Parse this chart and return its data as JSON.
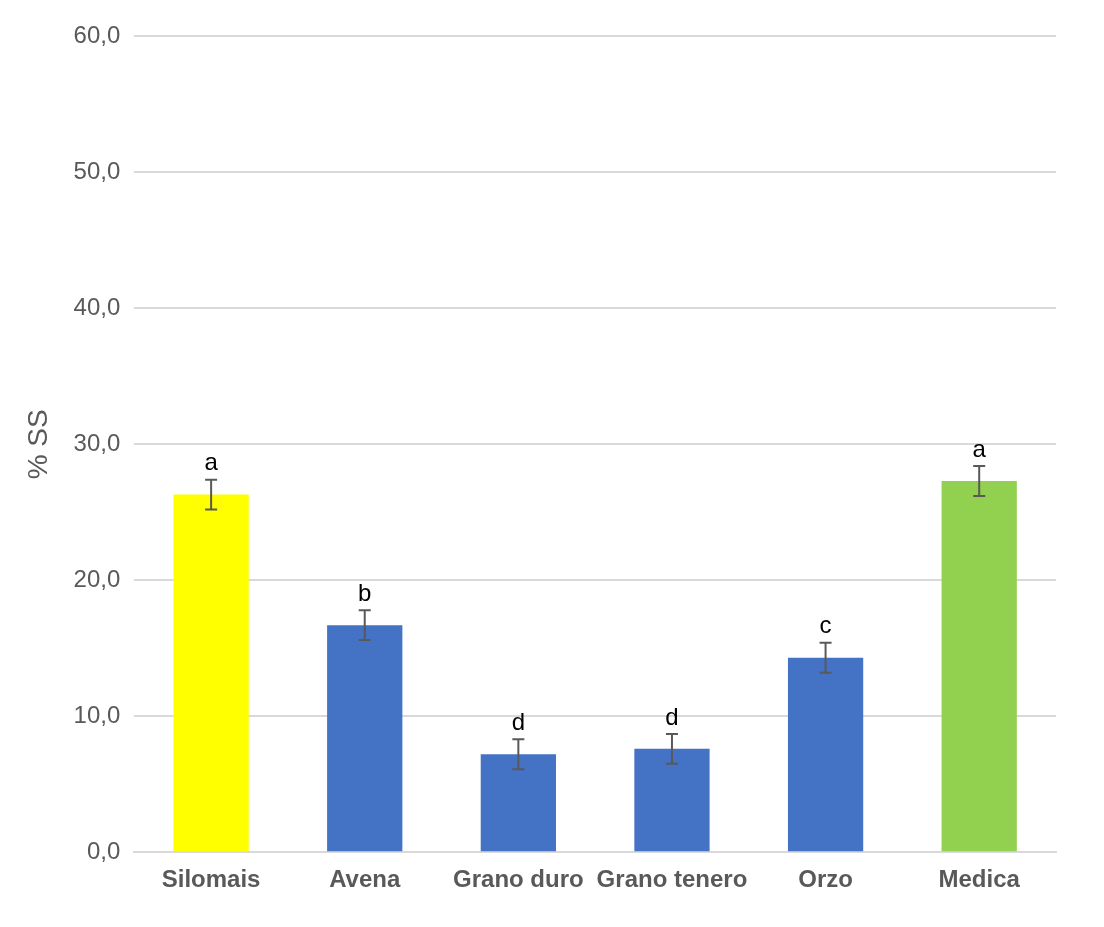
{
  "chart_data": {
    "type": "bar",
    "ylabel": "% SS",
    "categories": [
      "Silomais",
      "Avena",
      "Grano duro",
      "Grano tenero",
      "Orzo",
      "Medica"
    ],
    "values": [
      26.3,
      16.7,
      7.2,
      7.6,
      14.3,
      27.3
    ],
    "errors": [
      1.1,
      1.1,
      1.1,
      1.1,
      1.1,
      1.1
    ],
    "colors": [
      "#ffff00",
      "#4472c4",
      "#4472c4",
      "#4472c4",
      "#4472c4",
      "#92d050"
    ],
    "ylim": [
      0,
      60
    ],
    "yticks": [
      {
        "value": 0,
        "label": "0,0"
      },
      {
        "value": 10,
        "label": "10,0"
      },
      {
        "value": 20,
        "label": "20,0"
      },
      {
        "value": 30,
        "label": "30,0"
      },
      {
        "value": 40,
        "label": "40,0"
      },
      {
        "value": 50,
        "label": "50,0"
      },
      {
        "value": 60,
        "label": "60,0"
      }
    ],
    "grid": "y",
    "legend": false,
    "annotations": [
      {
        "text": "a",
        "x": "Silomais",
        "y": 27.4
      },
      {
        "text": "b",
        "x": "Avena",
        "y": 17.8
      },
      {
        "text": "d",
        "x": "Grano duro",
        "y": 8.3
      },
      {
        "text": "d",
        "x": "Grano tenero",
        "y": 8.7
      },
      {
        "text": "c",
        "x": "Orzo",
        "y": 15.4
      },
      {
        "text": "a",
        "x": "Medica",
        "y": 28.4
      }
    ]
  }
}
